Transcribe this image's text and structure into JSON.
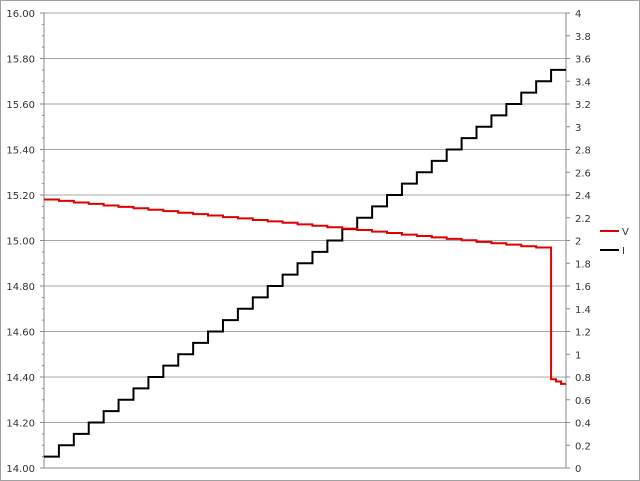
{
  "chart_data": {
    "type": "line",
    "title": "",
    "xlabel": "",
    "ylabel_left": "",
    "ylabel_right": "",
    "y_left": {
      "min": 14.0,
      "max": 16.0,
      "major": 0.2,
      "minor": 0.05,
      "decimals": 2
    },
    "y_right": {
      "min": 0,
      "max": 4,
      "major": 0.2
    },
    "grid": true,
    "legend_position": "right",
    "series": [
      {
        "name": "V",
        "axis": "left",
        "color": "#e00000",
        "style": "step",
        "values": [
          15.18,
          15.174,
          15.167,
          15.161,
          15.154,
          15.148,
          15.142,
          15.135,
          15.129,
          15.122,
          15.116,
          15.11,
          15.103,
          15.097,
          15.09,
          15.084,
          15.078,
          15.071,
          15.065,
          15.058,
          15.052,
          15.046,
          15.039,
          15.033,
          15.026,
          15.02,
          15.014,
          15.007,
          15.001,
          14.994,
          14.988,
          14.982,
          14.975,
          14.969,
          14.962
        ],
        "tail_values": [
          14.39,
          14.38,
          14.37
        ]
      },
      {
        "name": "I",
        "axis": "right",
        "color": "#000000",
        "style": "step",
        "values": [
          0.1,
          0.2,
          0.3,
          0.4,
          0.5,
          0.6,
          0.7,
          0.8,
          0.9,
          1.0,
          1.1,
          1.2,
          1.3,
          1.4,
          1.5,
          1.6,
          1.7,
          1.8,
          1.9,
          2.0,
          2.1,
          2.2,
          2.3,
          2.4,
          2.5,
          2.6,
          2.7,
          2.8,
          2.9,
          3.0,
          3.1,
          3.2,
          3.3,
          3.4,
          3.5
        ]
      }
    ]
  }
}
